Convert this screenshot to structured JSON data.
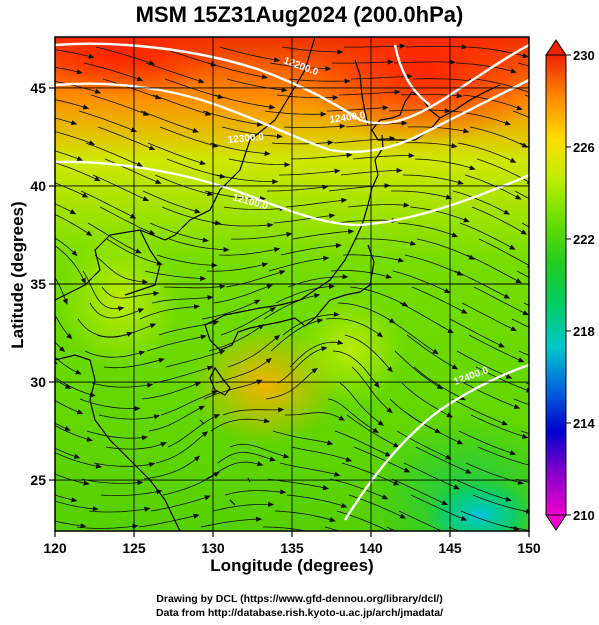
{
  "title": "MSM 15Z31Aug2024 (200.0hPa)",
  "x_axis": {
    "label": "Longitude (degrees)",
    "range": [
      120,
      150
    ],
    "ticks": [
      "120",
      "125",
      "130",
      "135",
      "140",
      "145",
      "150"
    ]
  },
  "y_axis": {
    "label": "Latitude  (degrees)",
    "range": [
      22.4,
      47.6
    ],
    "ticks": [
      "25",
      "30",
      "35",
      "40",
      "45"
    ]
  },
  "colorbar": {
    "range": [
      210,
      230
    ],
    "ticks": [
      "210",
      "214",
      "218",
      "222",
      "226",
      "230"
    ],
    "colors": [
      "#ee00cc",
      "#8800cc",
      "#0000cc",
      "#0066dd",
      "#00c6cc",
      "#00cc66",
      "#22cc22",
      "#66dd00",
      "#bbee00",
      "#ffdd00",
      "#ff8800",
      "#ee2200"
    ]
  },
  "contour_labels": [
    "12200.0",
    "12400.0",
    "12300.0",
    "12100.0",
    "12400.0"
  ],
  "credits": {
    "line1": "Drawing by DCL (https://www.gfd-dennou.org/library/dcl/)",
    "line2": "Data from http://database.rish.kyoto-u.ac.jp/arch/jmadata/"
  }
}
